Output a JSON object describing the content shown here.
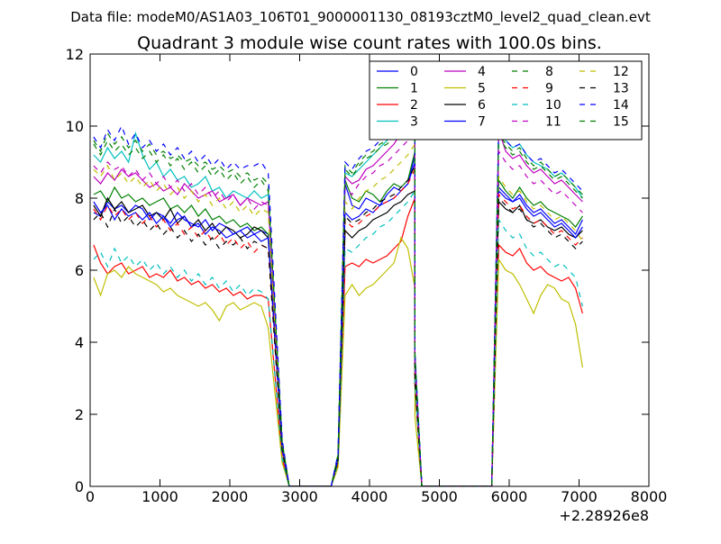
{
  "chart_data": {
    "type": "line",
    "suptitle": "Data file: modeM0/AS1A03_106T01_9000001130_08193cztM0_level2_quad_clean.evt",
    "title": "Quadrant 3 module wise count rates with 100.0s bins.",
    "xlabel": "",
    "ylabel": "",
    "x_offset_label": "+2.28926e8",
    "xlim": [
      0,
      8000
    ],
    "ylim": [
      0,
      12
    ],
    "xticks": [
      "0",
      "1000",
      "2000",
      "3000",
      "4000",
      "5000",
      "6000",
      "7000",
      "8000"
    ],
    "yticks": [
      "0",
      "2",
      "4",
      "6",
      "8",
      "10",
      "12"
    ],
    "grid": false,
    "legend_position": "top-right",
    "legend_columns": 4,
    "segments": [
      {
        "x_start": 50,
        "x_step": 100,
        "n": 26
      },
      {
        "x_start": 3650,
        "x_step": 100,
        "n": 11
      },
      {
        "x_start": 5850,
        "x_step": 100,
        "n": 13
      }
    ],
    "gaps": [
      {
        "x": [
          2650,
          2750,
          2850,
          2950,
          3450,
          3550,
          3650
        ],
        "shape": [
          1,
          0.15,
          0,
          0,
          0,
          0.1,
          1
        ]
      },
      {
        "x": [
          4550,
          4650,
          4750,
          5650,
          5750,
          5850
        ],
        "shape": [
          1,
          0.35,
          0,
          0,
          0,
          1
        ]
      }
    ],
    "series": [
      {
        "name": "0",
        "color": "#0000ff",
        "dash": "solid",
        "values": [
          7.6,
          7.5,
          7.9,
          7.7,
          7.8,
          7.6,
          7.8,
          7.7,
          7.4,
          7.6,
          7.5,
          7.3,
          7.6,
          7.4,
          7.3,
          7.2,
          7.4,
          7.1,
          7.3,
          7.2,
          7.0,
          7.1,
          7.2,
          7.0,
          7.1,
          7.0,
          8.4,
          7.8,
          7.7,
          8.0,
          7.9,
          7.8,
          8.1,
          8.3,
          8.2,
          8.4,
          9.2,
          8.2,
          8.0,
          7.9,
          8.1,
          7.8,
          7.6,
          7.7,
          7.5,
          7.3,
          7.4,
          7.2,
          7.0,
          7.4
        ]
      },
      {
        "name": "1",
        "color": "#008000",
        "dash": "solid",
        "values": [
          8.1,
          8.2,
          7.9,
          8.3,
          8.0,
          8.1,
          7.9,
          8.0,
          7.8,
          7.9,
          8.0,
          7.7,
          7.8,
          7.6,
          7.8,
          7.5,
          7.7,
          7.4,
          7.5,
          7.3,
          7.4,
          7.2,
          7.3,
          7.1,
          7.2,
          7.0,
          8.5,
          8.0,
          7.9,
          8.2,
          8.1,
          7.9,
          8.2,
          8.4,
          8.3,
          8.5,
          9.3,
          8.5,
          8.2,
          8.0,
          8.3,
          8.0,
          7.8,
          7.9,
          7.7,
          7.6,
          7.5,
          7.4,
          7.2,
          7.5
        ]
      },
      {
        "name": "2",
        "color": "#ff0000",
        "dash": "solid",
        "values": [
          6.7,
          6.2,
          5.9,
          6.1,
          6.2,
          5.9,
          6.0,
          6.1,
          5.8,
          5.9,
          5.8,
          6.0,
          5.7,
          5.8,
          5.6,
          5.7,
          5.5,
          5.6,
          5.4,
          5.5,
          5.3,
          5.4,
          5.2,
          5.3,
          5.3,
          5.2,
          6.1,
          6.2,
          6.1,
          6.3,
          6.2,
          6.3,
          6.4,
          6.6,
          6.8,
          7.5,
          8.0,
          6.7,
          6.5,
          6.4,
          6.6,
          6.2,
          6.0,
          6.1,
          5.9,
          5.8,
          5.7,
          5.8,
          5.5,
          4.8
        ]
      },
      {
        "name": "3",
        "color": "#00bfbf",
        "dash": "solid",
        "values": [
          9.2,
          9.0,
          9.4,
          9.1,
          9.3,
          9.0,
          9.8,
          9.2,
          8.8,
          9.0,
          8.6,
          8.8,
          8.5,
          8.6,
          8.3,
          8.4,
          8.6,
          8.2,
          8.3,
          8.0,
          8.2,
          8.1,
          8.0,
          8.2,
          8.0,
          8.1,
          8.7,
          8.6,
          8.8,
          9.0,
          9.2,
          9.4,
          9.6,
          9.8,
          10.0,
          10.3,
          10.7,
          10.2,
          9.6,
          9.4,
          9.5,
          9.2,
          9.0,
          8.9,
          8.8,
          8.6,
          8.7,
          8.5,
          8.3,
          8.0
        ]
      },
      {
        "name": "4",
        "color": "#bf00bf",
        "dash": "solid",
        "values": [
          8.6,
          8.4,
          8.7,
          8.5,
          8.8,
          8.6,
          8.7,
          8.5,
          8.3,
          8.4,
          8.2,
          8.3,
          8.1,
          8.4,
          8.2,
          8.0,
          8.1,
          8.2,
          7.9,
          8.0,
          8.1,
          7.8,
          8.0,
          7.9,
          7.8,
          7.9,
          8.6,
          8.4,
          8.5,
          8.8,
          8.9,
          9.1,
          9.3,
          9.5,
          9.8,
          10.0,
          10.3,
          9.9,
          9.3,
          9.1,
          9.2,
          8.9,
          8.7,
          8.8,
          8.6,
          8.4,
          8.5,
          8.3,
          8.1,
          7.9
        ]
      },
      {
        "name": "5",
        "color": "#bfbf00",
        "dash": "solid",
        "values": [
          5.8,
          5.3,
          5.9,
          6.0,
          5.8,
          6.1,
          5.9,
          5.8,
          5.7,
          5.6,
          5.4,
          5.5,
          5.3,
          5.2,
          5.1,
          5.0,
          5.1,
          4.9,
          4.6,
          5.0,
          5.1,
          4.9,
          5.0,
          5.1,
          5.0,
          4.4,
          5.3,
          5.6,
          5.3,
          5.5,
          5.6,
          5.8,
          6.0,
          6.2,
          6.9,
          6.6,
          5.5,
          6.3,
          6.0,
          5.9,
          5.6,
          5.2,
          4.8,
          5.3,
          5.6,
          5.5,
          5.2,
          5.1,
          4.5,
          3.3
        ]
      },
      {
        "name": "6",
        "color": "#000000",
        "dash": "solid",
        "values": [
          7.8,
          7.5,
          8.0,
          7.7,
          7.9,
          7.6,
          7.7,
          7.8,
          7.5,
          7.6,
          7.4,
          7.7,
          7.3,
          7.5,
          7.2,
          7.4,
          7.1,
          7.3,
          7.0,
          7.2,
          7.1,
          6.9,
          7.0,
          7.2,
          7.1,
          6.9,
          7.1,
          6.9,
          7.1,
          7.2,
          7.4,
          7.5,
          7.6,
          7.8,
          7.9,
          8.1,
          8.2,
          7.9,
          7.7,
          7.6,
          7.8,
          7.4,
          7.3,
          7.4,
          7.2,
          7.1,
          7.2,
          7.0,
          6.9,
          7.1
        ]
      },
      {
        "name": "7",
        "color": "#0000ff",
        "dash": "solid",
        "values": [
          7.9,
          7.6,
          7.8,
          7.4,
          7.7,
          7.5,
          7.6,
          7.4,
          7.6,
          7.3,
          7.5,
          7.2,
          7.4,
          7.5,
          7.2,
          7.3,
          7.0,
          7.2,
          7.1,
          6.9,
          7.0,
          7.1,
          6.9,
          7.0,
          6.8,
          6.9,
          7.6,
          7.4,
          7.5,
          7.7,
          7.6,
          7.8,
          7.9,
          8.0,
          8.2,
          8.4,
          9.0,
          8.3,
          8.1,
          7.9,
          8.0,
          7.7,
          7.5,
          7.6,
          7.4,
          7.2,
          7.3,
          7.1,
          6.9,
          7.2
        ]
      },
      {
        "name": "8",
        "color": "#008000",
        "dash": "dashed",
        "values": [
          9.6,
          9.3,
          9.8,
          9.5,
          9.7,
          9.4,
          9.6,
          9.3,
          9.5,
          9.2,
          9.3,
          9.1,
          9.2,
          9.0,
          9.1,
          8.9,
          9.0,
          8.8,
          8.9,
          8.7,
          8.8,
          8.6,
          8.7,
          8.5,
          8.6,
          8.4,
          8.9,
          8.7,
          9.0,
          9.2,
          9.3,
          9.5,
          9.6,
          9.8,
          10.0,
          10.2,
          10.4,
          9.8,
          9.5,
          9.3,
          9.4,
          9.1,
          8.9,
          9.0,
          8.8,
          8.6,
          8.7,
          8.5,
          8.3,
          8.1
        ]
      },
      {
        "name": "9",
        "color": "#ff0000",
        "dash": "dashed",
        "values": [
          7.7,
          7.4,
          7.8,
          7.5,
          7.7,
          7.4,
          7.6,
          7.3,
          7.5,
          7.2,
          7.4,
          7.1,
          7.3,
          7.0,
          7.2,
          6.9,
          7.1,
          6.8,
          7.0,
          6.7,
          6.9,
          6.6,
          6.8,
          6.5,
          6.7,
          6.6,
          7.4,
          7.2,
          7.3,
          7.5,
          7.6,
          7.8,
          7.9,
          8.0,
          8.2,
          8.4,
          8.8,
          8.1,
          7.9,
          7.7,
          7.8,
          7.5,
          7.3,
          7.4,
          7.2,
          7.0,
          7.1,
          6.9,
          6.7,
          6.9
        ]
      },
      {
        "name": "10",
        "color": "#00bfbf",
        "dash": "dashed",
        "values": [
          6.3,
          6.5,
          6.1,
          6.6,
          6.2,
          6.4,
          6.1,
          6.3,
          6.0,
          6.2,
          5.9,
          6.1,
          5.8,
          6.0,
          5.7,
          5.9,
          5.6,
          5.8,
          5.5,
          5.7,
          5.4,
          5.6,
          5.3,
          5.5,
          5.4,
          5.2,
          6.6,
          6.5,
          6.7,
          6.9,
          7.0,
          7.2,
          7.3,
          7.5,
          7.7,
          7.9,
          8.2,
          7.4,
          7.1,
          6.9,
          7.0,
          6.6,
          6.4,
          6.5,
          6.3,
          6.1,
          6.2,
          6.0,
          5.8,
          5.0
        ]
      },
      {
        "name": "11",
        "color": "#bf00bf",
        "dash": "dashed",
        "values": [
          8.9,
          8.7,
          9.0,
          8.8,
          8.9,
          8.6,
          8.8,
          8.5,
          8.7,
          8.4,
          8.6,
          8.3,
          8.5,
          8.2,
          8.4,
          8.1,
          8.3,
          8.0,
          8.2,
          7.9,
          8.1,
          7.8,
          8.0,
          7.7,
          7.9,
          7.8,
          8.3,
          8.1,
          8.4,
          8.6,
          8.7,
          8.9,
          9.0,
          9.2,
          9.4,
          9.6,
          9.9,
          9.3,
          9.0,
          8.8,
          8.9,
          8.6,
          8.4,
          8.5,
          8.3,
          8.1,
          8.2,
          8.0,
          7.8,
          7.6
        ]
      },
      {
        "name": "12",
        "color": "#bfbf00",
        "dash": "dashed",
        "values": [
          8.8,
          8.6,
          8.9,
          8.5,
          8.7,
          8.4,
          8.6,
          8.3,
          8.5,
          8.2,
          8.4,
          8.1,
          8.3,
          8.0,
          8.2,
          7.9,
          8.1,
          7.8,
          8.0,
          7.7,
          7.9,
          7.6,
          7.8,
          7.5,
          7.7,
          7.6,
          7.9,
          7.7,
          8.0,
          8.2,
          8.3,
          8.5,
          8.6,
          8.8,
          9.0,
          9.2,
          9.5,
          8.6,
          8.3,
          8.1,
          8.2,
          7.9,
          7.7,
          7.8,
          7.6,
          7.4,
          7.5,
          7.3,
          7.1,
          6.8
        ]
      },
      {
        "name": "13",
        "color": "#000000",
        "dash": "dashed",
        "values": [
          7.4,
          7.6,
          7.2,
          7.7,
          7.3,
          7.5,
          7.2,
          7.4,
          7.1,
          7.3,
          7.0,
          7.2,
          6.9,
          7.1,
          6.8,
          7.0,
          6.7,
          6.9,
          6.6,
          6.8,
          6.7,
          6.9,
          6.6,
          6.8,
          6.7,
          6.6,
          7.5,
          7.3,
          7.4,
          7.6,
          7.7,
          7.9,
          8.0,
          8.1,
          8.3,
          8.5,
          8.9,
          8.0,
          7.8,
          7.6,
          7.7,
          7.4,
          7.2,
          7.3,
          7.1,
          6.9,
          7.0,
          6.8,
          6.6,
          6.8
        ]
      },
      {
        "name": "14",
        "color": "#0000ff",
        "dash": "dashed",
        "values": [
          9.7,
          9.4,
          9.9,
          9.6,
          10.0,
          9.5,
          9.8,
          9.4,
          9.6,
          9.3,
          9.5,
          9.2,
          9.4,
          9.1,
          9.3,
          9.0,
          9.2,
          8.9,
          9.1,
          8.8,
          9.0,
          8.8,
          8.9,
          8.9,
          9.0,
          8.7,
          9.0,
          8.8,
          9.1,
          9.3,
          9.4,
          9.6,
          9.8,
          9.9,
          10.1,
          10.3,
          10.5,
          9.9,
          9.6,
          9.4,
          9.5,
          9.2,
          9.0,
          9.1,
          8.9,
          8.7,
          8.8,
          8.6,
          8.4,
          8.2
        ]
      },
      {
        "name": "15",
        "color": "#008000",
        "dash": "dashed",
        "values": [
          9.5,
          9.2,
          9.6,
          9.3,
          9.5,
          9.2,
          9.4,
          9.1,
          9.3,
          9.0,
          9.2,
          8.9,
          9.1,
          8.8,
          9.0,
          8.7,
          8.9,
          8.6,
          8.8,
          8.5,
          8.7,
          8.4,
          8.6,
          8.3,
          8.5,
          8.2,
          8.8,
          8.6,
          8.9,
          9.1,
          9.2,
          9.4,
          9.5,
          9.7,
          9.9,
          10.1,
          10.3,
          9.7,
          9.4,
          9.2,
          9.3,
          9.0,
          8.8,
          8.9,
          8.7,
          8.5,
          8.6,
          8.4,
          8.2,
          8.0
        ]
      }
    ]
  }
}
